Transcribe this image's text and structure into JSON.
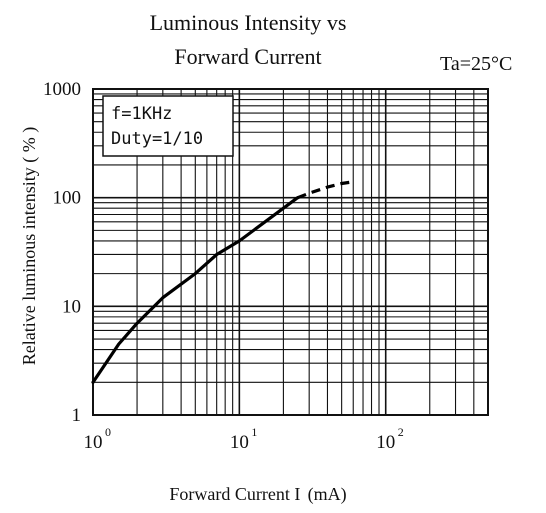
{
  "chart_data": {
    "type": "line",
    "title": "Luminous Intensity vs\nForward Current",
    "condition": "Ta=25°C",
    "annotation": [
      "f=1KHz",
      "Duty=1/10"
    ],
    "xlabel": "Forward Current   I  (mA)",
    "ylabel": "Relative luminous intensity ( % )",
    "x_scale": "log",
    "y_scale": "log",
    "xlim": [
      1,
      500
    ],
    "ylim": [
      1,
      1000
    ],
    "x_ticks": [
      {
        "value": 1,
        "label": "10",
        "exp": "0"
      },
      {
        "value": 10,
        "label": "10",
        "exp": "1"
      },
      {
        "value": 100,
        "label": "10",
        "exp": "2"
      }
    ],
    "y_ticks": [
      {
        "value": 1,
        "label": "1"
      },
      {
        "value": 10,
        "label": "10"
      },
      {
        "value": 100,
        "label": "100"
      },
      {
        "value": 1000,
        "label": "1000"
      }
    ],
    "grid": true,
    "series": [
      {
        "style": "solid",
        "x": [
          1,
          1.5,
          2,
          3,
          5,
          7,
          10,
          15,
          20,
          25
        ],
        "y": [
          2,
          4.5,
          7,
          12,
          20,
          30,
          40,
          60,
          80,
          100
        ]
      },
      {
        "style": "dashed",
        "x": [
          25,
          30,
          40,
          50,
          60
        ],
        "y": [
          100,
          110,
          125,
          135,
          140
        ]
      }
    ]
  }
}
